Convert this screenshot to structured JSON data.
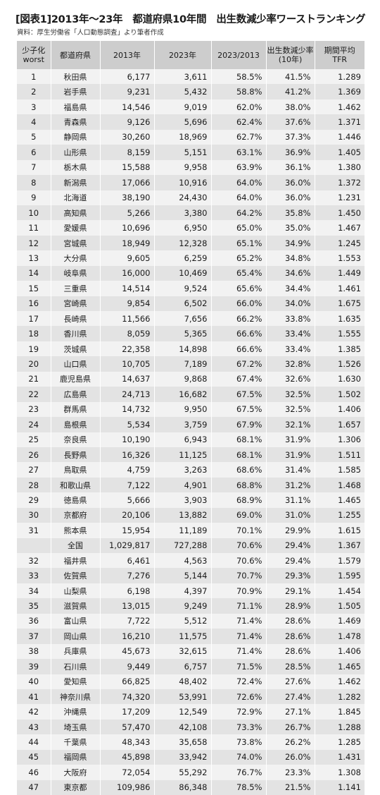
{
  "title": "[図表1]2013年〜23年　都道府県10年間　出生数減少率ワーストランキング",
  "source": "資料：厚生労働省「人口動態調査」より筆者作成",
  "headers": {
    "rank": [
      "少子化",
      "worst"
    ],
    "pref": "都道府県",
    "y2013": "2013年",
    "y2023": "2023年",
    "ratio": "2023/2013",
    "decline": [
      "出生数減少率",
      "(10年)"
    ],
    "tfr": [
      "期間平均",
      "TFR"
    ]
  },
  "rows": [
    {
      "rank": "1",
      "pref": "秋田県",
      "y2013": "6,177",
      "y2023": "3,611",
      "ratio": "58.5%",
      "decline": "41.5%",
      "tfr": "1.289"
    },
    {
      "rank": "2",
      "pref": "岩手県",
      "y2013": "9,231",
      "y2023": "5,432",
      "ratio": "58.8%",
      "decline": "41.2%",
      "tfr": "1.369"
    },
    {
      "rank": "3",
      "pref": "福島県",
      "y2013": "14,546",
      "y2023": "9,019",
      "ratio": "62.0%",
      "decline": "38.0%",
      "tfr": "1.462"
    },
    {
      "rank": "4",
      "pref": "青森県",
      "y2013": "9,126",
      "y2023": "5,696",
      "ratio": "62.4%",
      "decline": "37.6%",
      "tfr": "1.371"
    },
    {
      "rank": "5",
      "pref": "静岡県",
      "y2013": "30,260",
      "y2023": "18,969",
      "ratio": "62.7%",
      "decline": "37.3%",
      "tfr": "1.446"
    },
    {
      "rank": "6",
      "pref": "山形県",
      "y2013": "8,159",
      "y2023": "5,151",
      "ratio": "63.1%",
      "decline": "36.9%",
      "tfr": "1.405"
    },
    {
      "rank": "7",
      "pref": "栃木県",
      "y2013": "15,588",
      "y2023": "9,958",
      "ratio": "63.9%",
      "decline": "36.1%",
      "tfr": "1.380"
    },
    {
      "rank": "8",
      "pref": "新潟県",
      "y2013": "17,066",
      "y2023": "10,916",
      "ratio": "64.0%",
      "decline": "36.0%",
      "tfr": "1.372"
    },
    {
      "rank": "9",
      "pref": "北海道",
      "y2013": "38,190",
      "y2023": "24,430",
      "ratio": "64.0%",
      "decline": "36.0%",
      "tfr": "1.231"
    },
    {
      "rank": "10",
      "pref": "高知県",
      "y2013": "5,266",
      "y2023": "3,380",
      "ratio": "64.2%",
      "decline": "35.8%",
      "tfr": "1.450"
    },
    {
      "rank": "11",
      "pref": "愛媛県",
      "y2013": "10,696",
      "y2023": "6,950",
      "ratio": "65.0%",
      "decline": "35.0%",
      "tfr": "1.467"
    },
    {
      "rank": "12",
      "pref": "宮城県",
      "y2013": "18,949",
      "y2023": "12,328",
      "ratio": "65.1%",
      "decline": "34.9%",
      "tfr": "1.245"
    },
    {
      "rank": "13",
      "pref": "大分県",
      "y2013": "9,605",
      "y2023": "6,259",
      "ratio": "65.2%",
      "decline": "34.8%",
      "tfr": "1.553"
    },
    {
      "rank": "14",
      "pref": "岐阜県",
      "y2013": "16,000",
      "y2023": "10,469",
      "ratio": "65.4%",
      "decline": "34.6%",
      "tfr": "1.449"
    },
    {
      "rank": "15",
      "pref": "三重県",
      "y2013": "14,514",
      "y2023": "9,524",
      "ratio": "65.6%",
      "decline": "34.4%",
      "tfr": "1.461"
    },
    {
      "rank": "16",
      "pref": "宮崎県",
      "y2013": "9,854",
      "y2023": "6,502",
      "ratio": "66.0%",
      "decline": "34.0%",
      "tfr": "1.675"
    },
    {
      "rank": "17",
      "pref": "長崎県",
      "y2013": "11,566",
      "y2023": "7,656",
      "ratio": "66.2%",
      "decline": "33.8%",
      "tfr": "1.635"
    },
    {
      "rank": "18",
      "pref": "香川県",
      "y2013": "8,059",
      "y2023": "5,365",
      "ratio": "66.6%",
      "decline": "33.4%",
      "tfr": "1.555"
    },
    {
      "rank": "19",
      "pref": "茨城県",
      "y2013": "22,358",
      "y2023": "14,898",
      "ratio": "66.6%",
      "decline": "33.4%",
      "tfr": "1.385"
    },
    {
      "rank": "20",
      "pref": "山口県",
      "y2013": "10,705",
      "y2023": "7,189",
      "ratio": "67.2%",
      "decline": "32.8%",
      "tfr": "1.526"
    },
    {
      "rank": "21",
      "pref": "鹿児島県",
      "y2013": "14,637",
      "y2023": "9,868",
      "ratio": "67.4%",
      "decline": "32.6%",
      "tfr": "1.630"
    },
    {
      "rank": "22",
      "pref": "広島県",
      "y2013": "24,713",
      "y2023": "16,682",
      "ratio": "67.5%",
      "decline": "32.5%",
      "tfr": "1.502"
    },
    {
      "rank": "23",
      "pref": "群馬県",
      "y2013": "14,732",
      "y2023": "9,950",
      "ratio": "67.5%",
      "decline": "32.5%",
      "tfr": "1.406"
    },
    {
      "rank": "24",
      "pref": "島根県",
      "y2013": "5,534",
      "y2023": "3,759",
      "ratio": "67.9%",
      "decline": "32.1%",
      "tfr": "1.657"
    },
    {
      "rank": "25",
      "pref": "奈良県",
      "y2013": "10,190",
      "y2023": "6,943",
      "ratio": "68.1%",
      "decline": "31.9%",
      "tfr": "1.306"
    },
    {
      "rank": "26",
      "pref": "長野県",
      "y2013": "16,326",
      "y2023": "11,125",
      "ratio": "68.1%",
      "decline": "31.9%",
      "tfr": "1.511"
    },
    {
      "rank": "27",
      "pref": "鳥取県",
      "y2013": "4,759",
      "y2023": "3,263",
      "ratio": "68.6%",
      "decline": "31.4%",
      "tfr": "1.585"
    },
    {
      "rank": "28",
      "pref": "和歌山県",
      "y2013": "7,122",
      "y2023": "4,901",
      "ratio": "68.8%",
      "decline": "31.2%",
      "tfr": "1.468"
    },
    {
      "rank": "29",
      "pref": "徳島県",
      "y2013": "5,666",
      "y2023": "3,903",
      "ratio": "68.9%",
      "decline": "31.1%",
      "tfr": "1.465"
    },
    {
      "rank": "30",
      "pref": "京都府",
      "y2013": "20,106",
      "y2023": "13,882",
      "ratio": "69.0%",
      "decline": "31.0%",
      "tfr": "1.255"
    },
    {
      "rank": "31",
      "pref": "熊本県",
      "y2013": "15,954",
      "y2023": "11,189",
      "ratio": "70.1%",
      "decline": "29.9%",
      "tfr": "1.615"
    },
    {
      "rank": "",
      "pref": "全国",
      "y2013": "1,029,817",
      "y2023": "727,288",
      "ratio": "70.6%",
      "decline": "29.4%",
      "tfr": "1.367"
    },
    {
      "rank": "32",
      "pref": "福井県",
      "y2013": "6,461",
      "y2023": "4,563",
      "ratio": "70.6%",
      "decline": "29.4%",
      "tfr": "1.579"
    },
    {
      "rank": "33",
      "pref": "佐賀県",
      "y2013": "7,276",
      "y2023": "5,144",
      "ratio": "70.7%",
      "decline": "29.3%",
      "tfr": "1.595"
    },
    {
      "rank": "34",
      "pref": "山梨県",
      "y2013": "6,198",
      "y2023": "4,397",
      "ratio": "70.9%",
      "decline": "29.1%",
      "tfr": "1.454"
    },
    {
      "rank": "35",
      "pref": "滋賀県",
      "y2013": "13,015",
      "y2023": "9,249",
      "ratio": "71.1%",
      "decline": "28.9%",
      "tfr": "1.505"
    },
    {
      "rank": "36",
      "pref": "富山県",
      "y2013": "7,722",
      "y2023": "5,512",
      "ratio": "71.4%",
      "decline": "28.6%",
      "tfr": "1.469"
    },
    {
      "rank": "37",
      "pref": "岡山県",
      "y2013": "16,210",
      "y2023": "11,575",
      "ratio": "71.4%",
      "decline": "28.6%",
      "tfr": "1.478"
    },
    {
      "rank": "38",
      "pref": "兵庫県",
      "y2013": "45,673",
      "y2023": "32,615",
      "ratio": "71.4%",
      "decline": "28.6%",
      "tfr": "1.406"
    },
    {
      "rank": "39",
      "pref": "石川県",
      "y2013": "9,449",
      "y2023": "6,757",
      "ratio": "71.5%",
      "decline": "28.5%",
      "tfr": "1.465"
    },
    {
      "rank": "40",
      "pref": "愛知県",
      "y2013": "66,825",
      "y2023": "48,402",
      "ratio": "72.4%",
      "decline": "27.6%",
      "tfr": "1.462"
    },
    {
      "rank": "41",
      "pref": "神奈川県",
      "y2013": "74,320",
      "y2023": "53,991",
      "ratio": "72.6%",
      "decline": "27.4%",
      "tfr": "1.282"
    },
    {
      "rank": "42",
      "pref": "沖縄県",
      "y2013": "17,209",
      "y2023": "12,549",
      "ratio": "72.9%",
      "decline": "27.1%",
      "tfr": "1.845"
    },
    {
      "rank": "43",
      "pref": "埼玉県",
      "y2013": "57,470",
      "y2023": "42,108",
      "ratio": "73.3%",
      "decline": "26.7%",
      "tfr": "1.288"
    },
    {
      "rank": "44",
      "pref": "千葉県",
      "y2013": "48,343",
      "y2023": "35,658",
      "ratio": "73.8%",
      "decline": "26.2%",
      "tfr": "1.285"
    },
    {
      "rank": "45",
      "pref": "福岡県",
      "y2013": "45,898",
      "y2023": "33,942",
      "ratio": "74.0%",
      "decline": "26.0%",
      "tfr": "1.431"
    },
    {
      "rank": "46",
      "pref": "大阪府",
      "y2013": "72,054",
      "y2023": "55,292",
      "ratio": "76.7%",
      "decline": "23.3%",
      "tfr": "1.308"
    },
    {
      "rank": "47",
      "pref": "東京都",
      "y2013": "109,986",
      "y2023": "86,348",
      "ratio": "78.5%",
      "decline": "21.5%",
      "tfr": "1.141"
    }
  ]
}
